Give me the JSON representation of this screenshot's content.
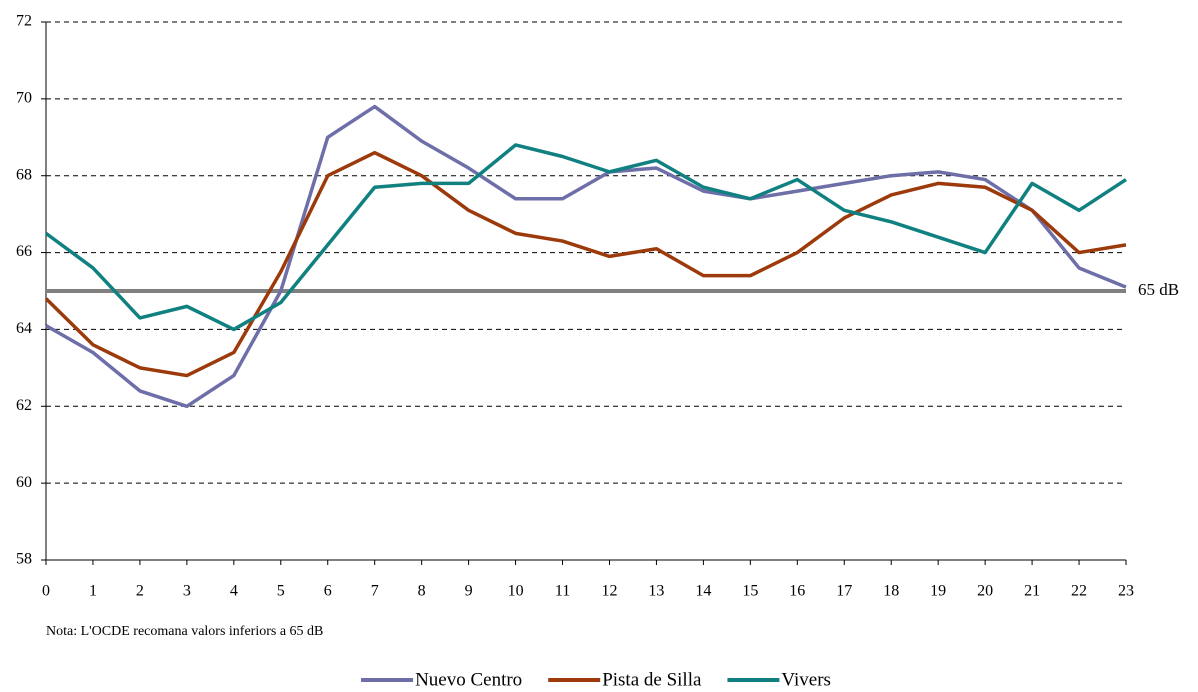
{
  "chart_data": {
    "type": "line",
    "x": [
      0,
      1,
      2,
      3,
      4,
      5,
      6,
      7,
      8,
      9,
      10,
      11,
      12,
      13,
      14,
      15,
      16,
      17,
      18,
      19,
      20,
      21,
      22,
      23
    ],
    "xlim": [
      0,
      23
    ],
    "xticks": [
      0,
      1,
      2,
      3,
      4,
      5,
      6,
      7,
      8,
      9,
      10,
      11,
      12,
      13,
      14,
      15,
      16,
      17,
      18,
      19,
      20,
      21,
      22,
      23
    ],
    "ylim": [
      58,
      72
    ],
    "yticks": [
      58,
      60,
      62,
      64,
      66,
      68,
      70,
      72
    ],
    "grid": true,
    "series": [
      {
        "name": "Nuevo Centro",
        "color": "#6e6ea8",
        "values": [
          64.1,
          63.4,
          62.4,
          62.0,
          62.8,
          65.0,
          69.0,
          69.8,
          68.9,
          68.2,
          67.4,
          67.4,
          68.1,
          68.2,
          67.6,
          67.4,
          67.6,
          67.8,
          68.0,
          68.1,
          67.9,
          67.1,
          65.6,
          65.1
        ]
      },
      {
        "name": "Pista de Silla",
        "color": "#9c3a0c",
        "values": [
          64.8,
          63.6,
          63.0,
          62.8,
          63.4,
          65.5,
          68.0,
          68.6,
          68.0,
          67.1,
          66.5,
          66.3,
          65.9,
          66.1,
          65.4,
          65.4,
          66.0,
          66.9,
          67.5,
          67.8,
          67.7,
          67.1,
          66.0,
          66.2
        ]
      },
      {
        "name": "Vivers",
        "color": "#108080",
        "values": [
          66.5,
          65.6,
          64.3,
          64.6,
          64.0,
          64.7,
          66.2,
          67.7,
          67.8,
          67.8,
          68.8,
          68.5,
          68.1,
          68.4,
          67.7,
          67.4,
          67.9,
          67.1,
          66.8,
          66.4,
          66.0,
          67.8,
          67.1,
          67.9
        ]
      }
    ],
    "reference_line": {
      "value": 65,
      "label": "65 dB",
      "color": "#808080"
    },
    "note": "Nota: L'OCDE recomana valors inferiors a 65 dB",
    "legend": "bottom"
  }
}
